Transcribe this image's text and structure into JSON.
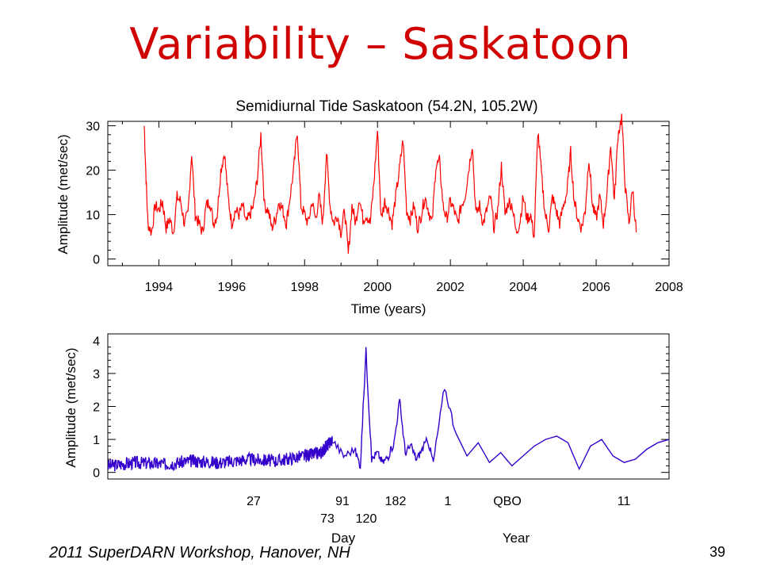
{
  "slide": {
    "title": "Variability – Saskatoon",
    "footer": "2011 SuperDARN Workshop, Hanover, NH",
    "page_number": "39"
  },
  "chart_data": [
    {
      "type": "line",
      "title": "Semidiurnal Tide Saskatoon (54.2N, 105.2W)",
      "xlabel": "Time (years)",
      "ylabel": "Amplitude (met/sec)",
      "xlim": [
        1992.6,
        2008
      ],
      "ylim": [
        -1.5,
        31
      ],
      "xticks": [
        "1994",
        "1996",
        "1998",
        "2000",
        "2002",
        "2004",
        "2006",
        "2008"
      ],
      "yticks": [
        "0",
        "10",
        "20",
        "30"
      ],
      "color": "#ff0000",
      "x": [
        1993.6,
        1993.65,
        1993.7,
        1993.8,
        1993.9,
        1994.0,
        1994.1,
        1994.2,
        1994.3,
        1994.4,
        1994.5,
        1994.6,
        1994.7,
        1994.8,
        1994.9,
        1995.0,
        1995.1,
        1995.2,
        1995.3,
        1995.4,
        1995.5,
        1995.6,
        1995.7,
        1995.8,
        1995.9,
        1996.0,
        1996.1,
        1996.2,
        1996.3,
        1996.4,
        1996.5,
        1996.6,
        1996.7,
        1996.8,
        1996.9,
        1997.0,
        1997.1,
        1997.2,
        1997.3,
        1997.4,
        1997.5,
        1997.6,
        1997.7,
        1997.8,
        1997.9,
        1998.0,
        1998.1,
        1998.2,
        1998.3,
        1998.4,
        1998.5,
        1998.6,
        1998.7,
        1998.8,
        1998.9,
        1999.0,
        1999.1,
        1999.2,
        1999.3,
        1999.4,
        1999.5,
        1999.6,
        1999.7,
        1999.8,
        1999.9,
        2000.0,
        2000.1,
        2000.2,
        2000.3,
        2000.4,
        2000.5,
        2000.6,
        2000.7,
        2000.8,
        2000.9,
        2001.0,
        2001.1,
        2001.2,
        2001.3,
        2001.4,
        2001.5,
        2001.6,
        2001.7,
        2001.8,
        2001.9,
        2002.0,
        2002.1,
        2002.2,
        2002.3,
        2002.4,
        2002.5,
        2002.6,
        2002.7,
        2002.8,
        2002.9,
        2003.0,
        2003.1,
        2003.2,
        2003.3,
        2003.4,
        2003.5,
        2003.6,
        2003.7,
        2003.8,
        2003.9,
        2004.0,
        2004.1,
        2004.2,
        2004.3,
        2004.4,
        2004.5,
        2004.6,
        2004.7,
        2004.8,
        2004.9,
        2005.0,
        2005.1,
        2005.2,
        2005.3,
        2005.4,
        2005.5,
        2005.6,
        2005.7,
        2005.8,
        2005.9,
        2006.0,
        2006.1,
        2006.2,
        2006.3,
        2006.4,
        2006.5,
        2006.6,
        2006.7,
        2006.8,
        2006.9,
        2007.0,
        2007.1
      ],
      "y": [
        30,
        18,
        8,
        6,
        12,
        11,
        13,
        7,
        9,
        6,
        14,
        13,
        8,
        10,
        24,
        10,
        8,
        6,
        12,
        13,
        8,
        10,
        20,
        24,
        14,
        8,
        11,
        10,
        12,
        8,
        10,
        12,
        18,
        28,
        12,
        11,
        7,
        9,
        13,
        11,
        8,
        14,
        20,
        29,
        12,
        10,
        8,
        13,
        9,
        14,
        8,
        24,
        12,
        8,
        10,
        6,
        11,
        1,
        12,
        8,
        14,
        9,
        10,
        8,
        17,
        29,
        9,
        13,
        11,
        8,
        14,
        20,
        27,
        11,
        9,
        12,
        7,
        10,
        14,
        11,
        8,
        21,
        22,
        12,
        9,
        13,
        11,
        8,
        12,
        14,
        20,
        26,
        10,
        12,
        8,
        11,
        14,
        7,
        11,
        21,
        10,
        13,
        12,
        6,
        8,
        14,
        9,
        10,
        5,
        29,
        19,
        10,
        7,
        14,
        11,
        8,
        12,
        15,
        24,
        13,
        9,
        7,
        11,
        23,
        12,
        9,
        14,
        8,
        15,
        26,
        13,
        28,
        32,
        16,
        8,
        16,
        6
      ]
    },
    {
      "type": "line",
      "xlabel": "Day",
      "xlabel2": "Year",
      "ylabel": "Amplitude (met/sec)",
      "ylim": [
        -0.2,
        4.2
      ],
      "yticks": [
        "0",
        "1",
        "2",
        "3",
        "4"
      ],
      "xticks_top": [
        "27",
        "91",
        "182",
        "1",
        "QBO",
        "11"
      ],
      "xticks_bottom": [
        "73",
        "120"
      ],
      "color": "#3300cc",
      "note_x": "Period axis (index scale) shown without numeric x values",
      "x": [
        0,
        0.05,
        0.1,
        0.15,
        0.2,
        0.25,
        0.3,
        0.35,
        0.38,
        0.4,
        0.42,
        0.44,
        0.45,
        0.46,
        0.47,
        0.48,
        0.49,
        0.5,
        0.51,
        0.52,
        0.53,
        0.54,
        0.55,
        0.56,
        0.57,
        0.58,
        0.6,
        0.62,
        0.64,
        0.66,
        0.68,
        0.7,
        0.72,
        0.74,
        0.76,
        0.78,
        0.8,
        0.82,
        0.84,
        0.86,
        0.88,
        0.9,
        0.92,
        0.94,
        0.96,
        0.98,
        1.0
      ],
      "y": [
        0.2,
        0.3,
        0.25,
        0.35,
        0.3,
        0.4,
        0.35,
        0.5,
        0.6,
        1.0,
        0.5,
        0.7,
        0.2,
        3.7,
        0.4,
        0.6,
        0.3,
        0.5,
        0.9,
        2.2,
        0.6,
        0.8,
        0.4,
        0.7,
        1.0,
        0.3,
        2.6,
        1.2,
        0.5,
        0.9,
        0.3,
        0.6,
        0.2,
        0.5,
        0.8,
        1.0,
        1.1,
        0.9,
        0.1,
        0.8,
        1.0,
        0.5,
        0.3,
        0.4,
        0.7,
        0.9,
        1.0
      ]
    }
  ]
}
